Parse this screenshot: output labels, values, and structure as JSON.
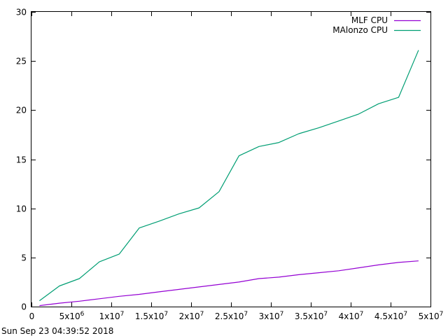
{
  "timestamp": "Sun Sep 23 04:39:52 2018",
  "chart_data": {
    "type": "line",
    "title": "",
    "xlabel": "",
    "ylabel": "",
    "xlim": [
      0,
      50000000
    ],
    "ylim": [
      0,
      30
    ],
    "grid": false,
    "legend_position": "top-right",
    "x_ticks": [
      {
        "value": 0,
        "base": "0",
        "exp": ""
      },
      {
        "value": 5000000,
        "base": "5x10",
        "exp": "6"
      },
      {
        "value": 10000000,
        "base": "1x10",
        "exp": "7"
      },
      {
        "value": 15000000,
        "base": "1.5x10",
        "exp": "7"
      },
      {
        "value": 20000000,
        "base": "2x10",
        "exp": "7"
      },
      {
        "value": 25000000,
        "base": "2.5x10",
        "exp": "7"
      },
      {
        "value": 30000000,
        "base": "3x10",
        "exp": "7"
      },
      {
        "value": 35000000,
        "base": "3.5x10",
        "exp": "7"
      },
      {
        "value": 40000000,
        "base": "4x10",
        "exp": "7"
      },
      {
        "value": 45000000,
        "base": "4.5x10",
        "exp": "7"
      },
      {
        "value": 50000000,
        "base": "5x10",
        "exp": "7"
      }
    ],
    "y_ticks": [
      {
        "value": 0,
        "label": "0"
      },
      {
        "value": 5,
        "label": "5"
      },
      {
        "value": 10,
        "label": "10"
      },
      {
        "value": 15,
        "label": "15"
      },
      {
        "value": 20,
        "label": "20"
      },
      {
        "value": 25,
        "label": "25"
      },
      {
        "value": 30,
        "label": "30"
      }
    ],
    "series": [
      {
        "name": "MLF CPU",
        "color": "#9400d3",
        "x": [
          1000000,
          3500000,
          6000000,
          8500000,
          11000000,
          13500000,
          16000000,
          18500000,
          21000000,
          23500000,
          26000000,
          28500000,
          31000000,
          33500000,
          36000000,
          38500000,
          41000000,
          43500000,
          46000000,
          48500000
        ],
        "y": [
          0.1,
          0.35,
          0.55,
          0.8,
          1.05,
          1.25,
          1.5,
          1.75,
          2.0,
          2.25,
          2.5,
          2.85,
          3.0,
          3.25,
          3.45,
          3.65,
          3.95,
          4.25,
          4.5,
          4.65
        ]
      },
      {
        "name": "MAlonzo CPU",
        "color": "#009e73",
        "x": [
          1000000,
          3500000,
          6000000,
          8500000,
          11000000,
          13500000,
          16000000,
          18500000,
          21000000,
          23500000,
          26000000,
          28500000,
          31000000,
          33500000,
          36000000,
          38500000,
          41000000,
          43500000,
          46000000,
          48500000
        ],
        "y": [
          0.6,
          2.1,
          2.85,
          4.55,
          5.35,
          8.0,
          8.7,
          9.45,
          10.05,
          11.7,
          15.35,
          16.3,
          16.7,
          17.6,
          18.2,
          18.9,
          19.6,
          20.65,
          21.3,
          26.1
        ]
      }
    ]
  }
}
